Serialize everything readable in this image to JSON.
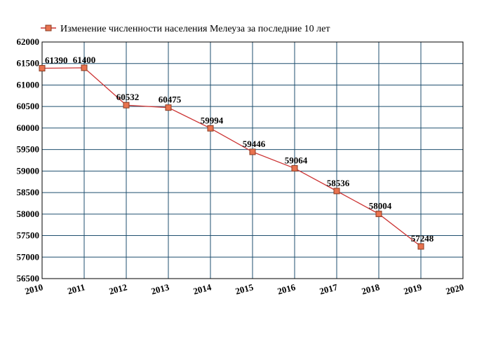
{
  "chart_data": {
    "type": "line",
    "title": "",
    "xlabel": "",
    "ylabel": "",
    "x": [
      2010,
      2011,
      2012,
      2013,
      2014,
      2015,
      2016,
      2017,
      2018,
      2019
    ],
    "series": [
      {
        "name": "Изменение численности населения Мелеуза за последние 10 лет",
        "values": [
          61390,
          61400,
          60532,
          60475,
          59994,
          59446,
          59064,
          58536,
          58004,
          57248
        ],
        "color": "#cc3333",
        "marker_color": "#e8734f"
      }
    ],
    "xlim": [
      2010,
      2020
    ],
    "ylim": [
      56500,
      62000
    ],
    "xticks": [
      "2010",
      "2011",
      "2012",
      "2013",
      "2014",
      "2015",
      "2016",
      "2017",
      "2018",
      "2019",
      "2020"
    ],
    "yticks": [
      "56500",
      "57000",
      "57500",
      "58000",
      "58500",
      "59000",
      "59500",
      "60000",
      "60500",
      "61000",
      "61500",
      "62000"
    ],
    "data_labels": [
      "61390",
      "61400",
      "60532",
      "60475",
      "59994",
      "59446",
      "59064",
      "58536",
      "58004",
      "57248"
    ],
    "grid": true,
    "grid_color": "#1f4f6f",
    "legend_position": "top-left"
  }
}
